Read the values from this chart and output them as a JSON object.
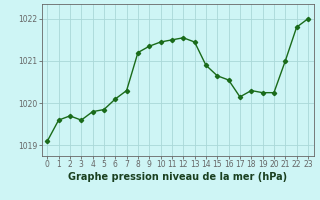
{
  "x": [
    0,
    1,
    2,
    3,
    4,
    5,
    6,
    7,
    8,
    9,
    10,
    11,
    12,
    13,
    14,
    15,
    16,
    17,
    18,
    19,
    20,
    21,
    22,
    23
  ],
  "y": [
    1019.1,
    1019.6,
    1019.7,
    1019.6,
    1019.8,
    1019.85,
    1020.1,
    1020.3,
    1021.2,
    1021.35,
    1021.45,
    1021.5,
    1021.55,
    1021.45,
    1020.9,
    1020.65,
    1020.55,
    1020.15,
    1020.3,
    1020.25,
    1020.25,
    1021.0,
    1021.8,
    1022.0
  ],
  "line_color": "#1a6b1a",
  "marker": "D",
  "marker_size": 2.2,
  "linewidth": 1.0,
  "bg_color": "#cef5f5",
  "grid_color": "#aad8d8",
  "xlabel": "Graphe pression niveau de la mer (hPa)",
  "xlabel_fontsize": 7.0,
  "xlabel_color": "#1a4020",
  "ylim": [
    1018.75,
    1022.35
  ],
  "yticks": [
    1019,
    1020,
    1021,
    1022
  ],
  "xticks": [
    0,
    1,
    2,
    3,
    4,
    5,
    6,
    7,
    8,
    9,
    10,
    11,
    12,
    13,
    14,
    15,
    16,
    17,
    18,
    19,
    20,
    21,
    22,
    23
  ],
  "tick_fontsize": 5.5,
  "spine_color": "#666666"
}
